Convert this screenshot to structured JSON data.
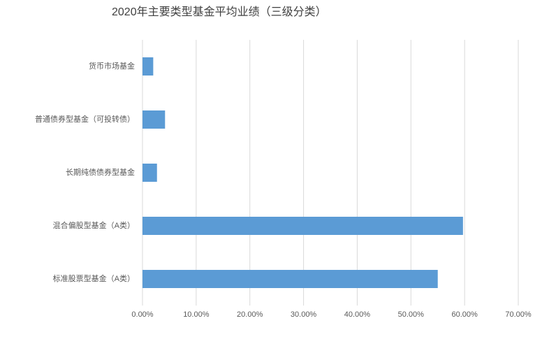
{
  "chart_data": {
    "type": "bar",
    "orientation": "horizontal",
    "title": "2020年主要类型基金平均业绩（三级分类）",
    "categories": [
      "货币市场基金",
      "普通债券型基金（可投转债）",
      "长期纯债债券型基金",
      "混合偏股型基金（A类）",
      "标准股票型基金（A类）"
    ],
    "values": [
      2.0,
      4.2,
      2.7,
      59.7,
      55.0
    ],
    "color": "#5b9bd5",
    "xlim": [
      0,
      70
    ],
    "xticks": [
      {
        "value": 0,
        "label": "0.00%"
      },
      {
        "value": 10,
        "label": "10.00%"
      },
      {
        "value": 20,
        "label": "20.00%"
      },
      {
        "value": 30,
        "label": "30.00%"
      },
      {
        "value": 40,
        "label": "40.00%"
      },
      {
        "value": 50,
        "label": "50.00%"
      },
      {
        "value": 60,
        "label": "60.00%"
      },
      {
        "value": 70,
        "label": "70.00%"
      }
    ],
    "grid": true
  }
}
